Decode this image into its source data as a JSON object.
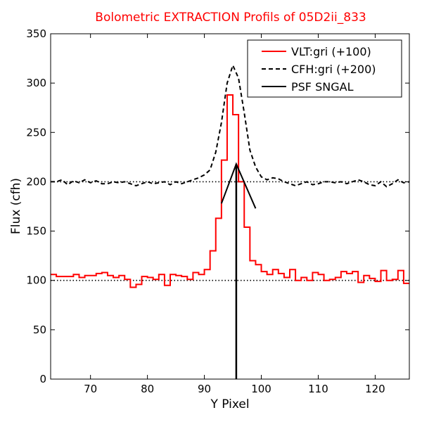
{
  "chart_data": {
    "type": "line",
    "title": "Bolometric EXTRACTION Profils of 05D2ii_833",
    "xlabel": "Y Pixel",
    "ylabel": "Flux (cfh)",
    "xlim": [
      63,
      126
    ],
    "ylim": [
      0,
      350
    ],
    "xticks": [
      70,
      80,
      90,
      100,
      110,
      120
    ],
    "yticks": [
      0,
      50,
      100,
      150,
      200,
      250,
      300,
      350
    ],
    "legend_position": "top-right",
    "series": [
      {
        "name": "VLT:gri (+100)",
        "color": "#ff0000",
        "style": "steps",
        "x": [
          63,
          64,
          65,
          66,
          67,
          68,
          69,
          70,
          71,
          72,
          73,
          74,
          75,
          76,
          77,
          78,
          79,
          80,
          81,
          82,
          83,
          84,
          85,
          86,
          87,
          88,
          89,
          90,
          91,
          92,
          93,
          94,
          95,
          96,
          97,
          98,
          99,
          100,
          101,
          102,
          103,
          104,
          105,
          106,
          107,
          108,
          109,
          110,
          111,
          112,
          113,
          114,
          115,
          116,
          117,
          118,
          119,
          120,
          121,
          122,
          123,
          124,
          125
        ],
        "y": [
          106,
          104,
          104,
          104,
          106,
          103,
          105,
          105,
          107,
          108,
          105,
          103,
          105,
          101,
          93,
          96,
          104,
          103,
          101,
          106,
          95,
          106,
          105,
          104,
          101,
          108,
          106,
          111,
          130,
          163,
          222,
          288,
          268,
          200,
          154,
          120,
          116,
          109,
          106,
          111,
          107,
          103,
          111,
          100,
          103,
          100,
          108,
          106,
          100,
          101,
          103,
          109,
          107,
          109,
          98,
          105,
          102,
          99,
          110,
          100,
          101,
          110,
          97
        ]
      },
      {
        "name": "CFH:gri (+200)",
        "color": "#000000",
        "style": "dashed",
        "x": [
          63,
          64,
          65,
          66,
          67,
          68,
          69,
          70,
          71,
          72,
          73,
          74,
          75,
          76,
          77,
          78,
          79,
          80,
          81,
          82,
          83,
          84,
          85,
          86,
          87,
          88,
          89,
          90,
          91,
          92,
          93,
          94,
          95,
          96,
          97,
          98,
          99,
          100,
          101,
          102,
          103,
          104,
          105,
          106,
          107,
          108,
          109,
          110,
          111,
          112,
          113,
          114,
          115,
          116,
          117,
          118,
          119,
          120,
          121,
          122,
          123,
          124,
          125,
          126
        ],
        "y": [
          200,
          200,
          202,
          197,
          201,
          199,
          202,
          199,
          201,
          198,
          198,
          200,
          199,
          200,
          198,
          196,
          198,
          200,
          198,
          199,
          200,
          197,
          200,
          198,
          200,
          202,
          204,
          207,
          212,
          230,
          260,
          300,
          318,
          305,
          270,
          232,
          215,
          205,
          202,
          204,
          203,
          200,
          198,
          196,
          198,
          200,
          197,
          198,
          200,
          200,
          199,
          200,
          198,
          200,
          202,
          200,
          197,
          196,
          200,
          195,
          198,
          202,
          199,
          200
        ]
      },
      {
        "name": "PSF SNGAL",
        "color": "#000000",
        "style": "solid",
        "x": [
          93,
          95.6,
          99
        ],
        "y": [
          178,
          218,
          173
        ],
        "vertical_line": {
          "x": 95.6,
          "y_from": 0,
          "y_to": 218
        }
      }
    ],
    "reference_lines": [
      {
        "y": 100,
        "style": "dotted",
        "color": "#000000"
      },
      {
        "y": 200,
        "style": "dotted",
        "color": "#000000"
      }
    ]
  }
}
